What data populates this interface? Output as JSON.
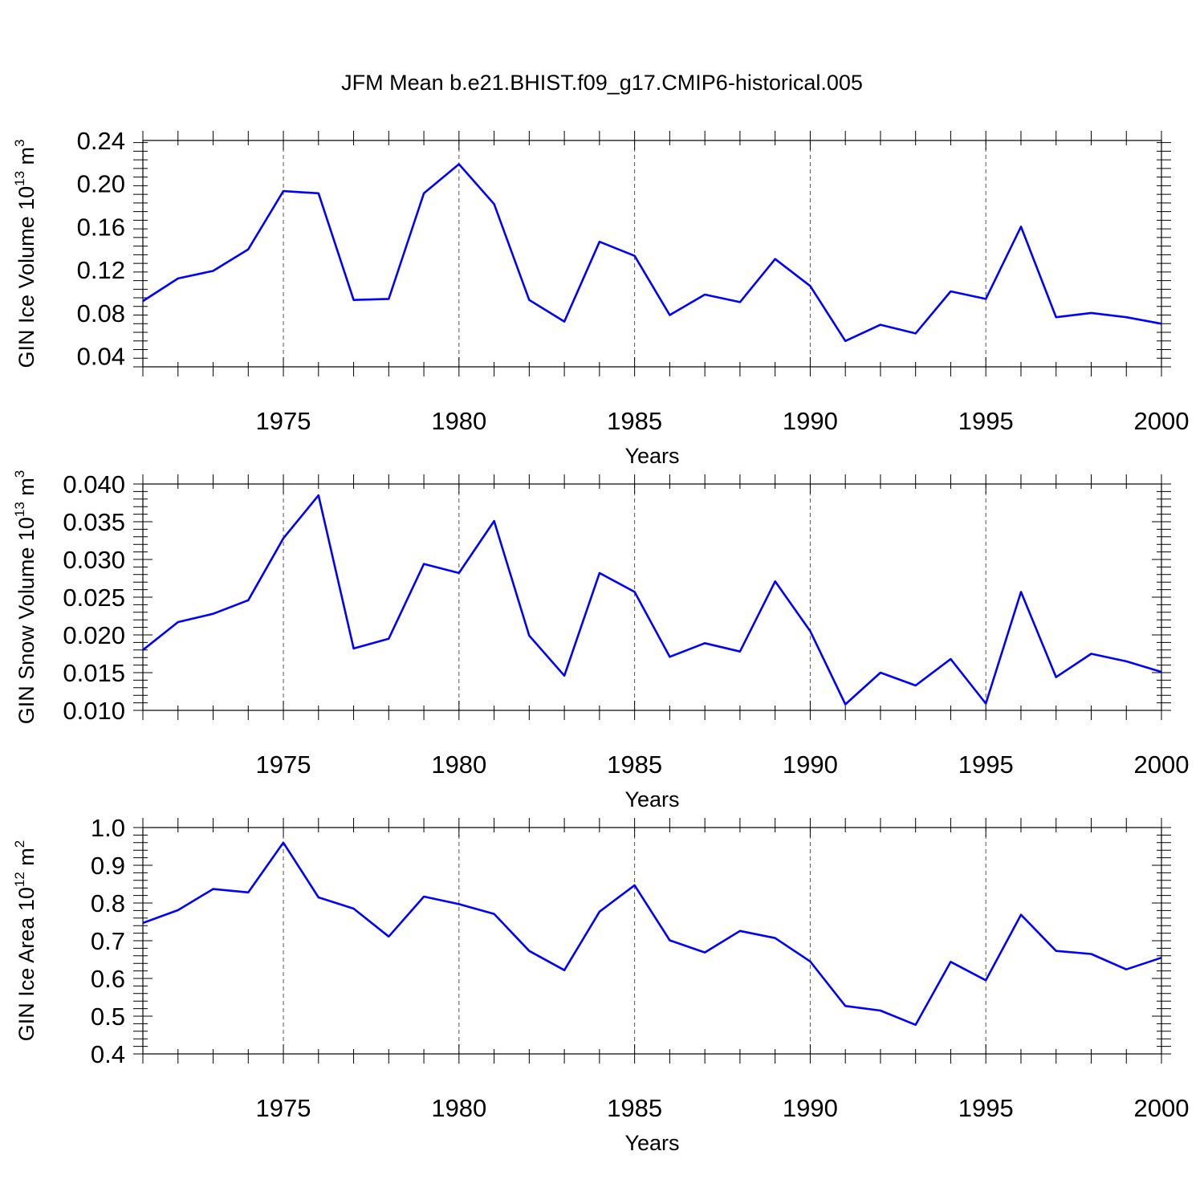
{
  "figure": {
    "title": "JFM Mean b.e21.BHIST.f09_g17.CMIP6-historical.005"
  },
  "colors": {
    "line": "#0000ff",
    "axis": "#000000",
    "grid": "#555555",
    "background": "#ffffff"
  },
  "chart_data": [
    {
      "type": "line",
      "title": "",
      "xlabel": "Years",
      "ylabel": "GIN Ice Volume 10",
      "ylabel_exp": "13",
      "ylabel_unit": " m",
      "ylabel_unit_exp": "3",
      "xlim": [
        1971,
        2000
      ],
      "ylim": [
        0.03,
        0.24
      ],
      "xticks": [
        1975,
        1980,
        1985,
        1990,
        1995,
        2000
      ],
      "yticks": [
        0.04,
        0.08,
        0.12,
        0.16,
        0.2,
        0.24
      ],
      "ytick_labels": [
        "0.04",
        "0.08",
        "0.12",
        "0.16",
        "0.20",
        "0.24"
      ],
      "grid": "vertical dashed at major x ticks",
      "x": [
        1971,
        1972,
        1973,
        1974,
        1975,
        1976,
        1977,
        1978,
        1979,
        1980,
        1981,
        1982,
        1983,
        1984,
        1985,
        1986,
        1987,
        1988,
        1989,
        1990,
        1991,
        1992,
        1993,
        1994,
        1995,
        1996,
        1997,
        1998,
        1999,
        2000
      ],
      "series": [
        {
          "values": [
            0.091,
            0.112,
            0.119,
            0.139,
            0.193,
            0.191,
            0.092,
            0.093,
            0.191,
            0.218,
            0.181,
            0.092,
            0.072,
            0.146,
            0.133,
            0.078,
            0.097,
            0.09,
            0.13,
            0.105,
            0.054,
            0.069,
            0.061,
            0.1,
            0.093,
            0.16,
            0.076,
            0.08,
            0.076,
            0.07
          ]
        }
      ]
    },
    {
      "type": "line",
      "title": "",
      "xlabel": "Years",
      "ylabel": "GIN Snow Volume 10",
      "ylabel_exp": "13",
      "ylabel_unit": " m",
      "ylabel_unit_exp": "3",
      "xlim": [
        1971,
        2000
      ],
      "ylim": [
        0.01,
        0.04
      ],
      "xticks": [
        1975,
        1980,
        1985,
        1990,
        1995,
        2000
      ],
      "yticks": [
        0.01,
        0.015,
        0.02,
        0.025,
        0.03,
        0.035,
        0.04
      ],
      "ytick_labels": [
        "0.010",
        "0.015",
        "0.020",
        "0.025",
        "0.030",
        "0.035",
        "0.040"
      ],
      "grid": "vertical dashed at major x ticks",
      "x": [
        1971,
        1972,
        1973,
        1974,
        1975,
        1976,
        1977,
        1978,
        1979,
        1980,
        1981,
        1982,
        1983,
        1984,
        1985,
        1986,
        1987,
        1988,
        1989,
        1990,
        1991,
        1992,
        1993,
        1994,
        1995,
        1996,
        1997,
        1998,
        1999,
        2000
      ],
      "series": [
        {
          "values": [
            0.018,
            0.0217,
            0.0228,
            0.0246,
            0.0328,
            0.0385,
            0.0182,
            0.0195,
            0.0294,
            0.0282,
            0.0351,
            0.0199,
            0.0146,
            0.0282,
            0.0257,
            0.0171,
            0.0189,
            0.0178,
            0.0271,
            0.0205,
            0.0108,
            0.015,
            0.0133,
            0.0168,
            0.0109,
            0.0257,
            0.0144,
            0.0175,
            0.0165,
            0.0151
          ]
        }
      ]
    },
    {
      "type": "line",
      "title": "",
      "xlabel": "Years",
      "ylabel": "GIN Ice Area 10",
      "ylabel_exp": "12",
      "ylabel_unit": " m",
      "ylabel_unit_exp": "2",
      "xlim": [
        1971,
        2000
      ],
      "ylim": [
        0.4,
        1.0
      ],
      "xticks": [
        1975,
        1980,
        1985,
        1990,
        1995,
        2000
      ],
      "yticks": [
        0.4,
        0.5,
        0.6,
        0.7,
        0.8,
        0.9,
        1.0
      ],
      "ytick_labels": [
        "0.4",
        "0.5",
        "0.6",
        "0.7",
        "0.8",
        "0.9",
        "1.0"
      ],
      "grid": "vertical dashed at major x ticks",
      "x": [
        1971,
        1972,
        1973,
        1974,
        1975,
        1976,
        1977,
        1978,
        1979,
        1980,
        1981,
        1982,
        1983,
        1984,
        1985,
        1986,
        1987,
        1988,
        1989,
        1990,
        1991,
        1992,
        1993,
        1994,
        1995,
        1996,
        1997,
        1998,
        1999,
        2000
      ],
      "series": [
        {
          "values": [
            0.747,
            0.781,
            0.837,
            0.828,
            0.96,
            0.815,
            0.785,
            0.711,
            0.817,
            0.797,
            0.771,
            0.673,
            0.622,
            0.777,
            0.847,
            0.701,
            0.669,
            0.726,
            0.707,
            0.645,
            0.527,
            0.515,
            0.477,
            0.644,
            0.595,
            0.769,
            0.673,
            0.665,
            0.624,
            0.655
          ]
        }
      ]
    }
  ]
}
